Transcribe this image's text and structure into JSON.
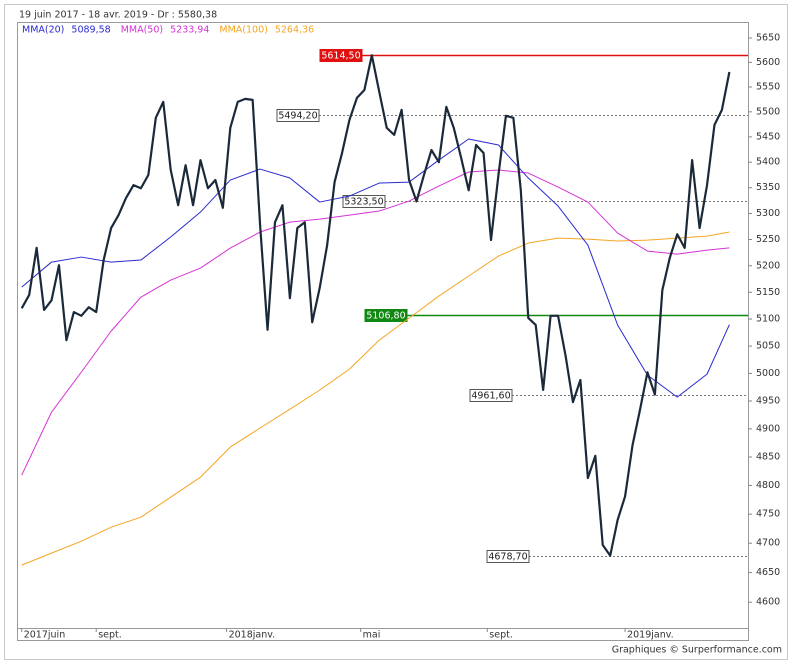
{
  "chart_data": {
    "type": "line",
    "subtitle": "19 juin 2017 - 18 avr. 2019 - Dr : 5580,38",
    "footer": "Graphiques © Surperformance.com",
    "log_scale": true,
    "grid": false,
    "ylim": [
      4557,
      5683
    ],
    "yticks": [
      4600,
      4650,
      4700,
      4750,
      4800,
      4850,
      4900,
      4950,
      5000,
      5050,
      5100,
      5150,
      5200,
      5250,
      5300,
      5350,
      5400,
      5450,
      5500,
      5550,
      5600,
      5650
    ],
    "xlim": [
      -0.5,
      97.5
    ],
    "xticks": [
      {
        "value": 0,
        "label": "2017juin"
      },
      {
        "value": 10,
        "label": "sept."
      },
      {
        "value": 27.5,
        "label": "2018janv."
      },
      {
        "value": 45.5,
        "label": "mai"
      },
      {
        "value": 62.5,
        "label": "sept."
      },
      {
        "value": 81,
        "label": "2019janv."
      }
    ],
    "series": [
      {
        "name": "MMA(100)",
        "legend_value": "5264,36",
        "color": "#f5a623",
        "x": [
          0,
          4,
          8,
          12,
          16,
          20,
          24,
          28,
          32,
          36,
          40,
          44,
          48,
          52,
          56,
          60,
          64,
          68,
          72,
          76,
          80,
          84,
          88,
          92,
          95
        ],
        "values": [
          4662.6,
          4683,
          4703.5,
          4727.5,
          4744.8,
          4779.5,
          4814.5,
          4867.5,
          4901.5,
          4935.3,
          4969.6,
          5007.8,
          5061,
          5101.7,
          5142.9,
          5180.6,
          5218.4,
          5243.2,
          5252.7,
          5250.8,
          5247,
          5248.9,
          5252.7,
          5256.5,
          5264.4
        ]
      },
      {
        "name": "MMA(50)",
        "legend_value": "5233,94",
        "color": "#d633d6",
        "x": [
          0,
          4,
          8,
          12,
          16,
          20,
          24,
          28,
          32,
          36,
          40,
          44,
          48,
          52,
          56,
          60,
          64,
          68,
          72,
          76,
          80,
          84,
          88,
          92,
          95
        ],
        "values": [
          4817.9,
          4929.9,
          5002.3,
          5077.6,
          5140.9,
          5173,
          5195.6,
          5233.6,
          5264.3,
          5283.4,
          5289.2,
          5296.9,
          5304.7,
          5324,
          5353.3,
          5380.7,
          5384.6,
          5378.7,
          5351.3,
          5322.1,
          5262.3,
          5227.9,
          5222.2,
          5229.8,
          5233.9
        ]
      },
      {
        "name": "MMA(20)",
        "legend_value": "5089,58",
        "color": "#2a2ad0",
        "x": [
          0,
          4,
          8,
          12,
          16,
          20,
          24,
          28,
          32,
          36,
          40,
          44,
          48,
          52,
          56,
          60,
          64,
          68,
          72,
          76,
          80,
          84,
          88,
          92,
          95
        ],
        "values": [
          5159.7,
          5207,
          5216.5,
          5207,
          5210.8,
          5254.7,
          5302.8,
          5364.9,
          5386.5,
          5368.9,
          5322.1,
          5333.8,
          5359.1,
          5361,
          5404.2,
          5445.8,
          5433.9,
          5368.9,
          5314.4,
          5239.4,
          5088.8,
          4996.9,
          4956.9,
          4998.7,
          5089.6
        ]
      },
      {
        "color": "#1b2a3a",
        "x": [
          0,
          1,
          2,
          3,
          4,
          5,
          6,
          7,
          8,
          9,
          10,
          11,
          12,
          13,
          14,
          15,
          16,
          17,
          18,
          19,
          20,
          21,
          22,
          23,
          24,
          25,
          26,
          27,
          28,
          29,
          30,
          31,
          32,
          33,
          34,
          35,
          36,
          37,
          38,
          39,
          40,
          41,
          42,
          43,
          44,
          45,
          46,
          47,
          48,
          49,
          50,
          51,
          52,
          53,
          54,
          55,
          56,
          57,
          58,
          59,
          60,
          61,
          62,
          63,
          64,
          65,
          66,
          67,
          68,
          69,
          70,
          71,
          72,
          73,
          74,
          75,
          76,
          77,
          78,
          79,
          80,
          81,
          82,
          83,
          84,
          85,
          86,
          87,
          88,
          89,
          90,
          91,
          92,
          93,
          94,
          95
        ],
        "values": [
          5120,
          5145,
          5234,
          5117,
          5135,
          5201,
          5061,
          5113,
          5106,
          5122,
          5113,
          5211,
          5272,
          5297,
          5330,
          5355,
          5349,
          5375,
          5488,
          5520,
          5385,
          5316,
          5394,
          5316,
          5404,
          5349,
          5365,
          5311,
          5468,
          5520,
          5526,
          5524,
          5278,
          5080,
          5283,
          5316,
          5139,
          5272,
          5283,
          5094,
          5158,
          5239,
          5361,
          5418,
          5484,
          5528,
          5544,
          5614.5,
          5540,
          5468,
          5454,
          5504,
          5365,
          5323.5,
          5375,
          5424,
          5400,
          5510,
          5468,
          5408,
          5345,
          5434,
          5418,
          5249,
          5375,
          5492,
          5488,
          5345,
          5102,
          5089,
          4970,
          5106,
          5106,
          5033,
          4948,
          4988,
          4813,
          4852,
          4697,
          4678.7,
          4740,
          4781,
          4871,
          4934,
          5002,
          4961.6,
          5154,
          5215,
          5260,
          5234,
          5404,
          5272,
          5355,
          5474,
          5504,
          5580.4
        ]
      }
    ],
    "levels": [
      {
        "value": 5614.5,
        "label": "5614,50",
        "color": "#e01010",
        "dashed": false
      },
      {
        "value": 5494.2,
        "label": "5494,20",
        "color": "#777777",
        "dashed": true
      },
      {
        "value": 5323.5,
        "label": "5323,50",
        "color": "#777777",
        "dashed": true
      },
      {
        "value": 5106.8,
        "label": "5106,80",
        "color": "#118811",
        "dashed": false
      },
      {
        "value": 4961.6,
        "label": "4961,60",
        "color": "#777777",
        "dashed": true
      },
      {
        "value": 4678.7,
        "label": "4678,70",
        "color": "#777777",
        "dashed": true
      }
    ]
  }
}
